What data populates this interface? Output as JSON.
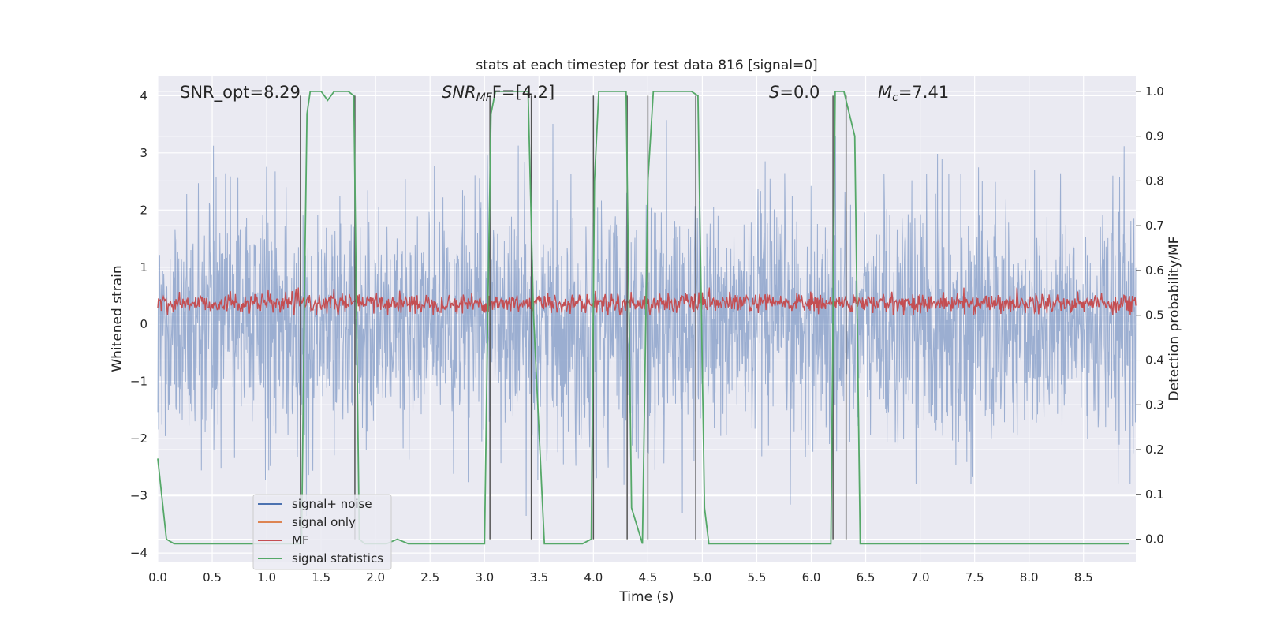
{
  "chart_data": {
    "type": "line",
    "title": "stats at each timestep for test data 816 [signal=0]",
    "xlabel": "Time (s)",
    "ylabel": "Whitened strain",
    "ylabel_right": "Detection probability/MF",
    "xlim": [
      0,
      8.98
    ],
    "ylim": [
      -4.15,
      4.35
    ],
    "ylim_right": [
      -0.05,
      1.035
    ],
    "xticks": [
      "0.0",
      "0.5",
      "1.0",
      "1.5",
      "2.0",
      "2.5",
      "3.0",
      "3.5",
      "4.0",
      "4.5",
      "5.0",
      "5.5",
      "6.0",
      "6.5",
      "7.0",
      "7.5",
      "8.0",
      "8.5"
    ],
    "yticks": [
      "4",
      "3",
      "2",
      "1",
      "0",
      "−1",
      "−2",
      "−3",
      "−4"
    ],
    "yticks_right": [
      "1.0",
      "0.9",
      "0.8",
      "0.7",
      "0.6",
      "0.5",
      "0.4",
      "0.3",
      "0.2",
      "0.1",
      "0.0"
    ],
    "grid": true,
    "legend_position": "lower-left",
    "annotations": {
      "snr_opt": "SNR_opt=8.29",
      "snr_mf_main": "SNR",
      "snr_mf_sub": "MF",
      "snr_mf_rest": "F=[4.2]",
      "s_main": "S",
      "s_rest": "=0.0",
      "mc_main": "M",
      "mc_sub": "c",
      "mc_rest": "=7.41"
    },
    "series": [
      {
        "name": "signal+ noise",
        "color": "#4c72b0",
        "axis": "left",
        "description": "noisy whitened strain, approx envelope -3.3..3.8"
      },
      {
        "name": "signal only",
        "color": "#dd8452",
        "axis": "left",
        "values": []
      },
      {
        "name": "MF",
        "color": "#c44e52",
        "axis": "right",
        "description": "matched filter output approx 0.5..0.56"
      },
      {
        "name": "signal statistics",
        "color": "#55a868",
        "axis": "right",
        "x": [
          0.0,
          0.08,
          0.15,
          0.5,
          1.0,
          1.32,
          1.35,
          1.37,
          1.4,
          1.5,
          1.56,
          1.62,
          1.75,
          1.8,
          1.83,
          1.85,
          1.9,
          2.0,
          2.1,
          2.2,
          2.3,
          2.5,
          2.8,
          3.0,
          3.03,
          3.06,
          3.1,
          3.15,
          3.4,
          3.45,
          3.55,
          3.6,
          3.9,
          3.98,
          4.01,
          4.05,
          4.3,
          4.35,
          4.45,
          4.5,
          4.55,
          4.9,
          4.96,
          5.02,
          5.06,
          5.5,
          6.0,
          6.18,
          6.22,
          6.3,
          6.4,
          6.45,
          7.0,
          8.0,
          8.92
        ],
        "y": [
          0.18,
          0.0,
          -0.01,
          -0.01,
          -0.01,
          -0.01,
          0.6,
          0.95,
          1.0,
          1.0,
          0.98,
          1.0,
          1.0,
          0.99,
          0.4,
          0.0,
          -0.01,
          -0.01,
          -0.01,
          0.0,
          -0.01,
          -0.01,
          -0.01,
          -0.01,
          0.5,
          0.95,
          1.0,
          1.0,
          1.0,
          0.5,
          -0.01,
          -0.01,
          -0.01,
          0.0,
          0.8,
          1.0,
          1.0,
          0.07,
          -0.01,
          0.8,
          1.0,
          1.0,
          0.99,
          0.07,
          -0.01,
          -0.01,
          -0.01,
          -0.01,
          1.0,
          1.0,
          0.9,
          -0.01,
          -0.01,
          -0.01,
          -0.01
        ]
      }
    ],
    "vertical_lines": {
      "color": "#555555",
      "x": [
        1.31,
        1.81,
        3.05,
        3.43,
        4.0,
        4.31,
        4.5,
        4.94,
        6.2,
        6.32
      ]
    }
  }
}
